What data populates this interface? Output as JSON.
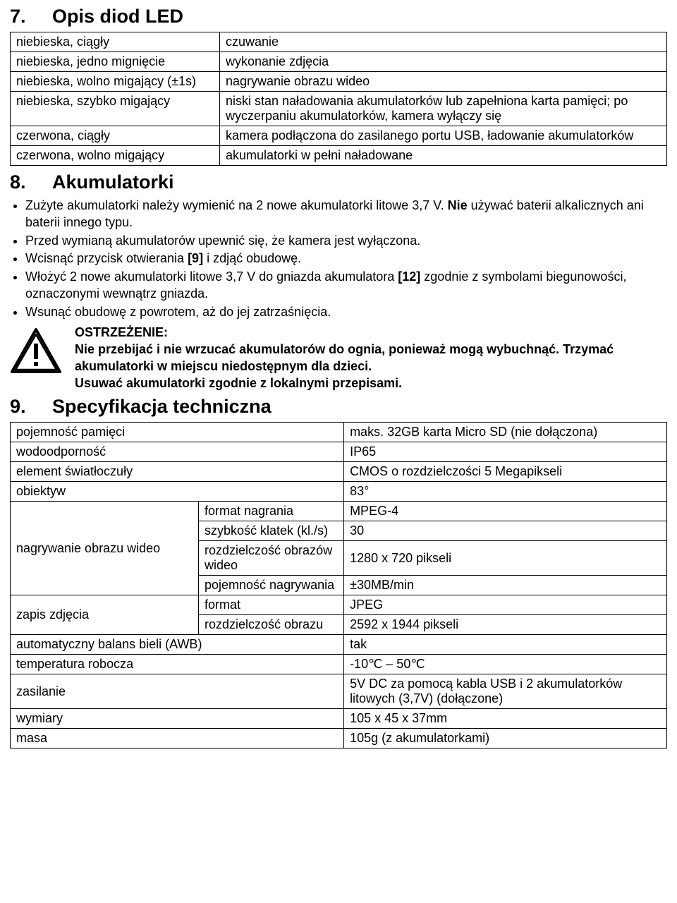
{
  "section7": {
    "title": "Opis diod LED",
    "number": "7.",
    "rows": [
      {
        "left": "niebieska, ciągły",
        "right": "czuwanie"
      },
      {
        "left": "niebieska, jedno mignięcie",
        "right": "wykonanie zdjęcia"
      },
      {
        "left": "niebieska, wolno migający (±1s)",
        "right": "nagrywanie obrazu wideo"
      },
      {
        "left": "niebieska, szybko migający",
        "right": "niski stan naładowania akumulatorków lub zapełniona karta pamięci; po wyczerpaniu akumulatorków, kamera wyłączy się"
      },
      {
        "left": "czerwona, ciągły",
        "right": "kamera podłączona do zasilanego portu USB, ładowanie akumulatorków"
      },
      {
        "left": "czerwona, wolno migający",
        "right": "akumulatorki w pełni naładowane"
      }
    ]
  },
  "section8": {
    "title": "Akumulatorki",
    "number": "8.",
    "bullets": [
      "Zużyte akumulatorki należy wymienić na 2 nowe akumulatorki litowe 3,7 V. <b>Nie</b> używać baterii alkalicznych ani baterii innego typu.",
      "Przed wymianą akumulatorów upewnić się, że kamera jest wyłączona.",
      "Wcisnąć przycisk otwierania <b>[9]</b> i zdjąć obudowę.",
      "Włożyć 2 nowe akumulatorki litowe 3,7 V do gniazda akumulatora <b>[12]</b> zgodnie z symbolami biegunowości, oznaczonymi wewnątrz gniazda.",
      "Wsunąć obudowę z powrotem, aż do jej zatrzaśnięcia."
    ],
    "warning_title": "OSTRZEŻENIE:",
    "warning_body": "Nie przebijać i nie wrzucać akumulatorów do ognia, ponieważ mogą wybuchnąć. Trzymać akumulatorki w miejscu niedostępnym dla dzieci.<br>Usuwać akumulatorki zgodnie z lokalnymi przepisami."
  },
  "section9": {
    "title": "Specyfikacja techniczna",
    "number": "9.",
    "rows": {
      "memory": {
        "label": "pojemność pamięci",
        "value": "maks. 32GB karta Micro SD (nie dołączona)"
      },
      "water": {
        "label": "wodoodporność",
        "value": "IP65"
      },
      "sensor": {
        "label": "element światłoczuły",
        "value": "CMOS o rozdzielczości 5 Megapikseli"
      },
      "lens": {
        "label": "obiektyw",
        "value": "83°"
      },
      "video_label": "nagrywanie obrazu wideo",
      "video": [
        {
          "k": "format nagrania",
          "v": "MPEG-4"
        },
        {
          "k": "szybkość klatek (kl./s)",
          "v": "30"
        },
        {
          "k": "rozdzielczość obrazów wideo",
          "v": "1280 x 720 pikseli"
        },
        {
          "k": "pojemność nagrywania",
          "v": "±30MB/min"
        }
      ],
      "photo_label": "zapis zdjęcia",
      "photo": [
        {
          "k": "format",
          "v": "JPEG"
        },
        {
          "k": "rozdzielczość obrazu",
          "v": "2592 x 1944 pikseli"
        }
      ],
      "awb": {
        "label": "automatyczny balans bieli (AWB)",
        "value": "tak"
      },
      "temp": {
        "label": "temperatura robocza",
        "value": "-10℃ – 50℃"
      },
      "power": {
        "label": "zasilanie",
        "value": "5V DC za pomocą kabla USB i 2 akumulatorków litowych (3,7V) (dołączone)"
      },
      "dim": {
        "label": "wymiary",
        "value": "105 x 45 x 37mm"
      },
      "mass": {
        "label": "masa",
        "value": "105g (z akumulatorkami)"
      }
    }
  },
  "style": {
    "font_family": "Verdana",
    "body_fontsize": 18,
    "heading_fontsize": 27,
    "border_color": "#000000",
    "background_color": "#ffffff",
    "text_color": "#000000"
  }
}
